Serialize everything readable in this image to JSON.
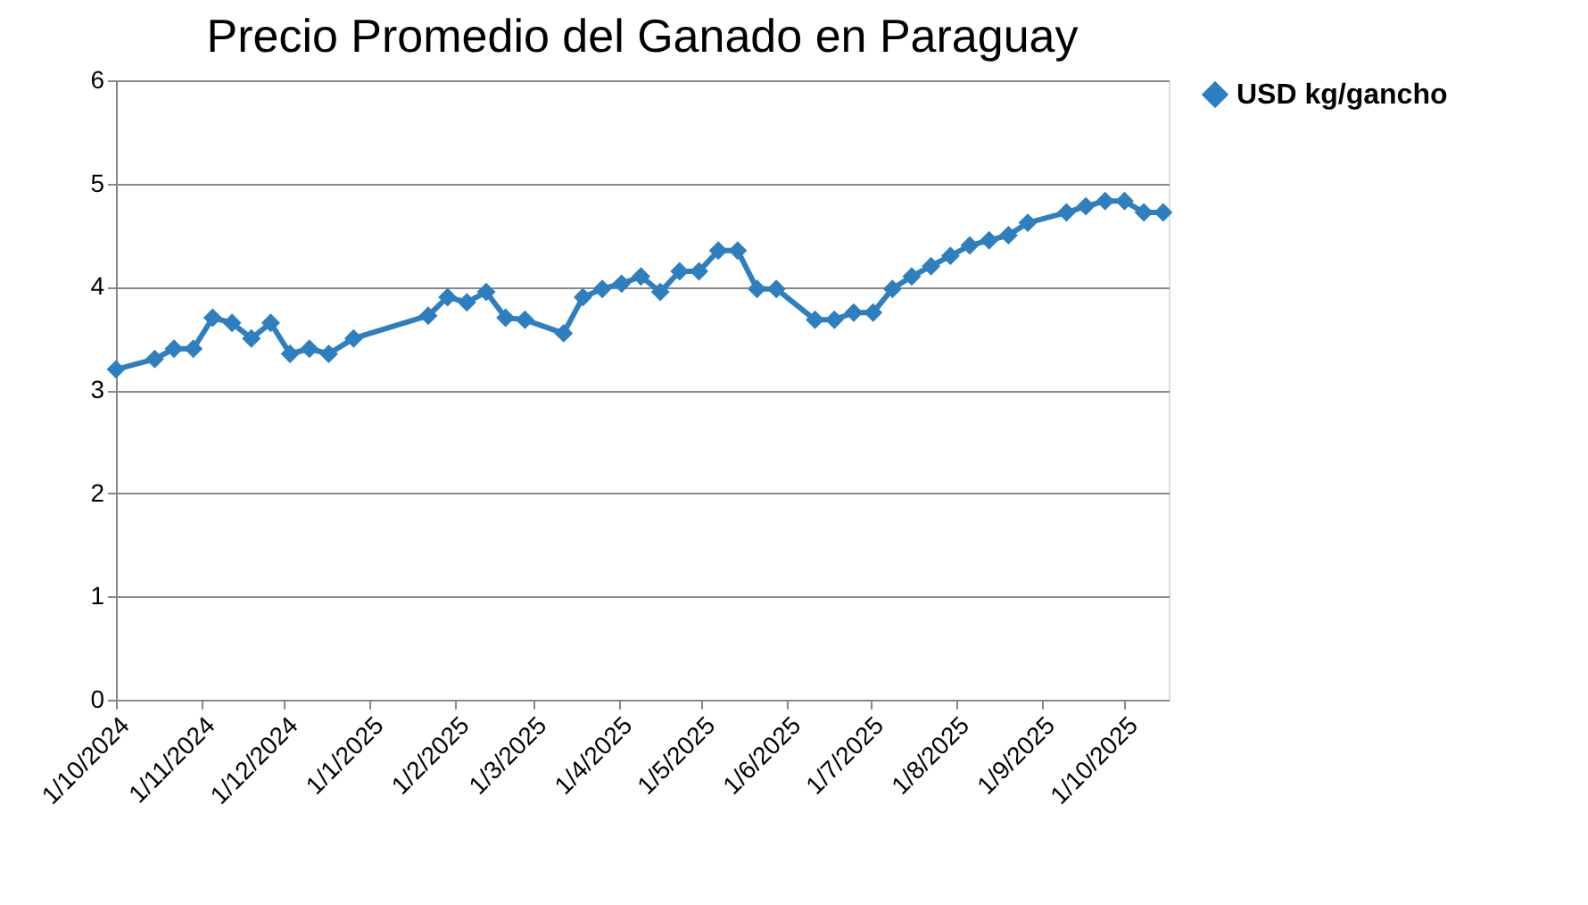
{
  "chart_data": {
    "type": "line",
    "title": "Precio Promedio del Ganado en Paraguay",
    "x": [
      "2024-10-01",
      "2024-10-15",
      "2024-10-22",
      "2024-10-29",
      "2024-11-05",
      "2024-11-12",
      "2024-11-19",
      "2024-11-26",
      "2024-12-03",
      "2024-12-10",
      "2024-12-17",
      "2024-12-26",
      "2025-01-22",
      "2025-01-29",
      "2025-02-05",
      "2025-02-12",
      "2025-02-19",
      "2025-02-26",
      "2025-03-12",
      "2025-03-19",
      "2025-03-26",
      "2025-04-02",
      "2025-04-09",
      "2025-04-16",
      "2025-04-23",
      "2025-04-30",
      "2025-05-07",
      "2025-05-14",
      "2025-05-21",
      "2025-05-28",
      "2025-06-11",
      "2025-06-18",
      "2025-06-25",
      "2025-07-02",
      "2025-07-09",
      "2025-07-16",
      "2025-07-23",
      "2025-07-30",
      "2025-08-06",
      "2025-08-13",
      "2025-08-20",
      "2025-08-27",
      "2025-09-10",
      "2025-09-17",
      "2025-09-24",
      "2025-10-01",
      "2025-10-08",
      "2025-10-15"
    ],
    "series": [
      {
        "name": "USD kg/gancho",
        "color": "#2e7fc0",
        "values": [
          3.2,
          3.3,
          3.4,
          3.4,
          3.7,
          3.65,
          3.5,
          3.65,
          3.35,
          3.4,
          3.35,
          3.5,
          3.72,
          3.9,
          3.85,
          3.95,
          3.7,
          3.68,
          3.55,
          3.9,
          3.98,
          4.03,
          4.1,
          3.95,
          4.15,
          4.15,
          4.35,
          4.35,
          3.98,
          3.98,
          3.68,
          3.68,
          3.75,
          3.75,
          3.98,
          4.1,
          4.2,
          4.3,
          4.4,
          4.45,
          4.5,
          4.62,
          4.72,
          4.78,
          4.83,
          4.83,
          4.72,
          4.72
        ]
      }
    ],
    "xlim": [
      "2024-10-01",
      "2025-10-17"
    ],
    "xticks": [
      {
        "value": "2024-10-01",
        "label": "1/10/2024"
      },
      {
        "value": "2024-11-01",
        "label": "1/11/2024"
      },
      {
        "value": "2024-12-01",
        "label": "1/12/2024"
      },
      {
        "value": "2025-01-01",
        "label": "1/1/2025"
      },
      {
        "value": "2025-02-01",
        "label": "1/2/2025"
      },
      {
        "value": "2025-03-01",
        "label": "1/3/2025"
      },
      {
        "value": "2025-04-01",
        "label": "1/4/2025"
      },
      {
        "value": "2025-05-01",
        "label": "1/5/2025"
      },
      {
        "value": "2025-06-01",
        "label": "1/6/2025"
      },
      {
        "value": "2025-07-01",
        "label": "1/7/2025"
      },
      {
        "value": "2025-08-01",
        "label": "1/8/2025"
      },
      {
        "value": "2025-09-01",
        "label": "1/9/2025"
      },
      {
        "value": "2025-10-01",
        "label": "1/10/2025"
      }
    ],
    "ylim": [
      0,
      6
    ],
    "yticks": [
      0,
      1,
      2,
      3,
      4,
      5,
      6
    ],
    "grid": "y",
    "legend": "right",
    "marker": "diamond",
    "line_style": "solid"
  }
}
